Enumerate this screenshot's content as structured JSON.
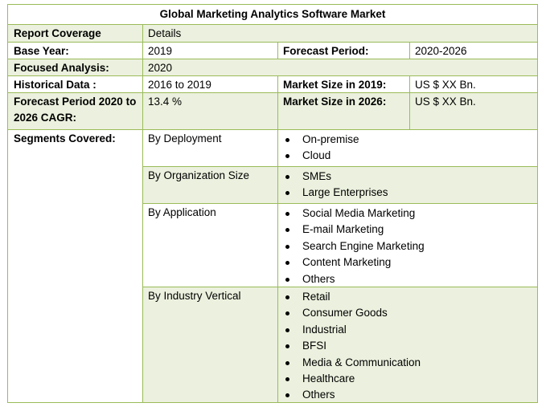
{
  "title": "Global Marketing Analytics Software Market",
  "rows": {
    "coverage": {
      "label": "Report Coverage",
      "value": "Details"
    },
    "base_year": {
      "label": "Base Year:",
      "value": "2019",
      "label2": "Forecast Period:",
      "value2": "2020-2026"
    },
    "focused": {
      "label": "Focused Analysis:",
      "value": "2020"
    },
    "historical": {
      "label": "Historical Data :",
      "value": "2016 to 2019",
      "label2": "Market Size in 2019:",
      "value2": "US $ XX Bn."
    },
    "cagr": {
      "label": "Forecast Period 2020 to 2026 CAGR:",
      "value": "13.4 %",
      "label2": "Market Size in 2026:",
      "value2": "US $ XX Bn."
    }
  },
  "segments": {
    "label": "Segments Covered:",
    "groups": [
      {
        "name": "By Deployment",
        "items": [
          "On-premise",
          "Cloud"
        ]
      },
      {
        "name": "By Organization Size",
        "items": [
          "SMEs",
          "Large Enterprises"
        ]
      },
      {
        "name": "By Application",
        "items": [
          "Social Media Marketing",
          "E-mail Marketing",
          "Search Engine Marketing",
          "Content Marketing",
          "Others"
        ]
      },
      {
        "name": "By Industry Vertical",
        "items": [
          "Retail",
          "Consumer Goods",
          "Industrial",
          "BFSI",
          "Media & Communication",
          "Healthcare",
          "Others"
        ]
      }
    ]
  },
  "colors": {
    "border": "#9bbb59",
    "band": "#ebf1de"
  }
}
